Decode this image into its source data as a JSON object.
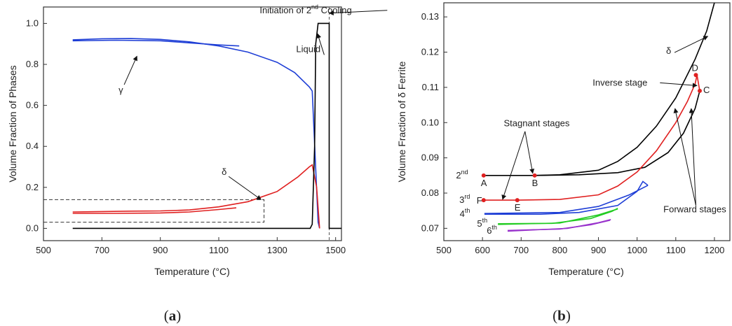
{
  "chart_data": [
    {
      "id": "a",
      "type": "line",
      "caption_letter": "a",
      "xlabel": "Temperature (°C)",
      "ylabel": "Volume Fraction of Phases",
      "xlim": [
        500,
        1520
      ],
      "ylim": [
        -0.06,
        1.08
      ],
      "xticks": [
        500,
        700,
        900,
        1100,
        1300,
        1500
      ],
      "yticks": [
        0.0,
        0.2,
        0.4,
        0.6,
        0.8,
        1.0
      ],
      "ytick_labels": [
        "0.0",
        "0.2",
        "0.4",
        "0.6",
        "0.8",
        "1.0"
      ],
      "series": [
        {
          "color": "#1f3fd6",
          "points": [
            [
              600,
              0.92
            ],
            [
              700,
              0.925
            ],
            [
              800,
              0.926
            ],
            [
              900,
              0.922
            ],
            [
              1000,
              0.91
            ],
            [
              1100,
              0.89
            ],
            [
              1200,
              0.86
            ],
            [
              1300,
              0.81
            ],
            [
              1360,
              0.76
            ],
            [
              1410,
              0.69
            ],
            [
              1420,
              0.67
            ],
            [
              1440,
              0.03
            ],
            [
              1445,
              0.0
            ]
          ]
        },
        {
          "color": "#1f3fd6",
          "points": [
            [
              600,
              0.915
            ],
            [
              750,
              0.918
            ],
            [
              900,
              0.915
            ],
            [
              1000,
              0.905
            ],
            [
              1100,
              0.895
            ],
            [
              1170,
              0.89
            ]
          ]
        },
        {
          "color": "#e02020",
          "points": [
            [
              600,
              0.08
            ],
            [
              700,
              0.082
            ],
            [
              800,
              0.084
            ],
            [
              900,
              0.085
            ],
            [
              1000,
              0.09
            ],
            [
              1100,
              0.105
            ],
            [
              1200,
              0.13
            ],
            [
              1300,
              0.18
            ],
            [
              1370,
              0.25
            ],
            [
              1410,
              0.3
            ],
            [
              1420,
              0.31
            ],
            [
              1435,
              0.2
            ],
            [
              1445,
              0.0
            ]
          ]
        },
        {
          "color": "#e02020",
          "points": [
            [
              600,
              0.073
            ],
            [
              750,
              0.073
            ],
            [
              900,
              0.075
            ],
            [
              1000,
              0.08
            ],
            [
              1100,
              0.092
            ],
            [
              1160,
              0.1
            ]
          ]
        },
        {
          "color": "#000000",
          "points": [
            [
              600,
              0.0
            ],
            [
              1413,
              0.0
            ],
            [
              1420,
              0.02
            ],
            [
              1428,
              0.4
            ],
            [
              1432,
              0.9
            ],
            [
              1440,
              1.0
            ],
            [
              1478,
              1.0
            ],
            [
              1478,
              0.0
            ],
            [
              1520,
              0.0
            ]
          ]
        }
      ],
      "annotations": [
        {
          "text": "Initiation of 2",
          "sup": "nd",
          "after": " Cooling",
          "x": 1240,
          "y": 1.05,
          "arrow_to": [
            1478,
            1.05
          ]
        },
        {
          "text": "Liquid",
          "x": 1365,
          "y": 0.86,
          "arrow_to": [
            1438,
            0.95
          ]
        },
        {
          "text": "γ",
          "x": 757,
          "y": 0.66,
          "arrow_to": [
            820,
            0.84
          ]
        },
        {
          "text": "δ",
          "x": 1110,
          "y": 0.26,
          "arrow_to": [
            1245,
            0.14
          ]
        }
      ],
      "dashed_box": {
        "x": [
          500,
          1255
        ],
        "y": [
          0.03,
          0.14
        ]
      },
      "dashed_vline": 1478
    },
    {
      "id": "b",
      "type": "line",
      "caption_letter": "b",
      "xlabel": "Temperature (°C)",
      "ylabel": "Volume Fraction of δ Ferrite",
      "xlim": [
        500,
        1240
      ],
      "ylim": [
        0.0665,
        0.134
      ],
      "xticks": [
        500,
        600,
        700,
        800,
        900,
        1000,
        1100,
        1200
      ],
      "yticks": [
        0.07,
        0.08,
        0.09,
        0.1,
        0.11,
        0.12,
        0.13
      ],
      "ytick_labels": [
        "0.07",
        "0.08",
        "0.09",
        "0.10",
        "0.11",
        "0.12",
        "0.13"
      ],
      "series": [
        {
          "color": "#000000",
          "points": [
            [
              600,
              0.085
            ],
            [
              735,
              0.085
            ],
            [
              800,
              0.0852
            ],
            [
              900,
              0.0865
            ],
            [
              950,
              0.089
            ],
            [
              1000,
              0.093
            ],
            [
              1050,
              0.099
            ],
            [
              1100,
              0.107
            ],
            [
              1150,
              0.118
            ],
            [
              1180,
              0.126
            ],
            [
              1200,
              0.134
            ]
          ]
        },
        {
          "color": "#000000",
          "points": [
            [
              735,
              0.085
            ],
            [
              850,
              0.0852
            ],
            [
              950,
              0.0858
            ],
            [
              1020,
              0.0873
            ],
            [
              1080,
              0.0915
            ],
            [
              1120,
              0.097
            ],
            [
              1150,
              0.104
            ],
            [
              1162,
              0.109
            ]
          ]
        },
        {
          "color": "#e02020",
          "points": [
            [
              602,
              0.078
            ],
            [
              690,
              0.078
            ],
            [
              800,
              0.0782
            ],
            [
              900,
              0.0795
            ],
            [
              950,
              0.082
            ],
            [
              1000,
              0.086
            ],
            [
              1050,
              0.092
            ],
            [
              1100,
              0.1
            ],
            [
              1130,
              0.106
            ],
            [
              1150,
              0.111
            ],
            [
              1155,
              0.1135
            ],
            [
              1162,
              0.109
            ]
          ]
        },
        {
          "color": "#1f3fd6",
          "points": [
            [
              605,
              0.074
            ],
            [
              750,
              0.074
            ],
            [
              850,
              0.0745
            ],
            [
              950,
              0.0765
            ],
            [
              1000,
              0.0805
            ],
            [
              1015,
              0.0833
            ],
            [
              1028,
              0.0822
            ]
          ]
        },
        {
          "color": "#1f3fd6",
          "points": [
            [
              605,
              0.0742
            ],
            [
              800,
              0.0745
            ],
            [
              900,
              0.0762
            ],
            [
              980,
              0.0795
            ],
            [
              1028,
              0.0822
            ]
          ]
        },
        {
          "color": "#22cc22",
          "points": [
            [
              640,
              0.0713
            ],
            [
              780,
              0.0714
            ],
            [
              880,
              0.0728
            ],
            [
              935,
              0.0748
            ],
            [
              950,
              0.0757
            ]
          ]
        },
        {
          "color": "#22cc22",
          "points": [
            [
              640,
              0.0711
            ],
            [
              800,
              0.0715
            ],
            [
              900,
              0.0738
            ],
            [
              950,
              0.0755
            ]
          ]
        },
        {
          "color": "#9933cc",
          "points": [
            [
              665,
              0.0694
            ],
            [
              800,
              0.0698
            ],
            [
              880,
              0.071
            ],
            [
              930,
              0.0723
            ]
          ]
        },
        {
          "color": "#9933cc",
          "points": [
            [
              665,
              0.0692
            ],
            [
              820,
              0.07
            ],
            [
              900,
              0.0716
            ],
            [
              932,
              0.0725
            ]
          ]
        }
      ],
      "points": [
        {
          "label": "A",
          "x": 603,
          "y": 0.085,
          "color": "#e02020"
        },
        {
          "label": "B",
          "x": 735,
          "y": 0.085,
          "color": "#e02020"
        },
        {
          "label": "C",
          "x": 1162,
          "y": 0.109,
          "color": "#e02020"
        },
        {
          "label": "D",
          "x": 1152,
          "y": 0.1135,
          "color": "#e02020"
        },
        {
          "label": "E",
          "x": 690,
          "y": 0.078,
          "color": "#e02020"
        },
        {
          "label": "F",
          "x": 603,
          "y": 0.078,
          "color": "#e02020"
        }
      ],
      "stage_labels": [
        {
          "num": "2",
          "sup": "nd",
          "x": 570,
          "y": 0.085
        },
        {
          "num": "3",
          "sup": "rd",
          "x": 575,
          "y": 0.078
        },
        {
          "num": "4",
          "sup": "th",
          "x": 575,
          "y": 0.074
        },
        {
          "num": "5",
          "sup": "th",
          "x": 620,
          "y": 0.0713
        },
        {
          "num": "6",
          "sup": "th",
          "x": 645,
          "y": 0.0693
        }
      ],
      "annotations": [
        {
          "text": "δ",
          "x": 1075,
          "y": 0.1195,
          "arrow_to": [
            1183,
            0.1245
          ]
        },
        {
          "text": "Inverse stage",
          "x": 885,
          "y": 0.1105,
          "arrow_to": [
            1155,
            0.1105
          ]
        },
        {
          "text": "Stagnant stages",
          "x": 655,
          "y": 0.099
        },
        {
          "text": "Forward stages",
          "x": 1068,
          "y": 0.0745
        }
      ],
      "multi_arrows": [
        {
          "from": [
            710,
            0.0975
          ],
          "to": [
            652,
            0.0782
          ]
        },
        {
          "from": [
            710,
            0.0975
          ],
          "to": [
            730,
            0.0856
          ]
        },
        {
          "from": [
            1152,
            0.0765
          ],
          "to": [
            1098,
            0.104
          ]
        },
        {
          "from": [
            1152,
            0.0765
          ],
          "to": [
            1140,
            0.104
          ]
        }
      ]
    }
  ],
  "captions": [
    {
      "open": "(",
      "letter": "a",
      "close": ")"
    },
    {
      "open": "(",
      "letter": "b",
      "close": ")"
    }
  ]
}
